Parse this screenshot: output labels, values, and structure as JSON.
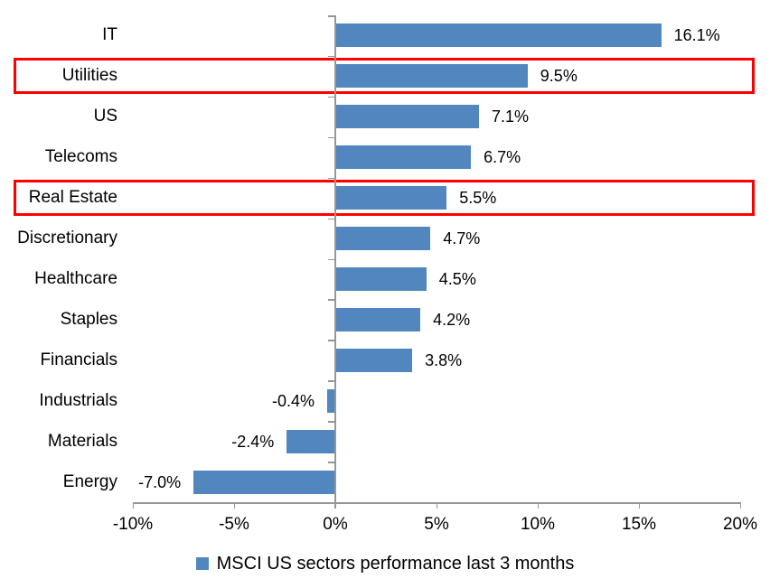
{
  "chart_data": {
    "type": "bar",
    "orientation": "horizontal",
    "title": "",
    "categories": [
      "IT",
      "Utilities",
      "US",
      "Telecoms",
      "Real Estate",
      "Discretionary",
      "Healthcare",
      "Staples",
      "Financials",
      "Industrials",
      "Materials",
      "Energy"
    ],
    "values": [
      16.1,
      9.5,
      7.1,
      6.7,
      5.5,
      4.7,
      4.5,
      4.2,
      3.8,
      -0.4,
      -2.4,
      -7.0
    ],
    "value_labels": [
      "16.1%",
      "9.5%",
      "7.1%",
      "6.7%",
      "5.5%",
      "4.7%",
      "4.5%",
      "4.2%",
      "3.8%",
      "-0.4%",
      "-2.4%",
      "-7.0%"
    ],
    "highlighted_categories": [
      "Utilities",
      "Real Estate"
    ],
    "x_axis": {
      "min": -10,
      "max": 20,
      "ticks": [
        -10,
        -5,
        0,
        5,
        10,
        15,
        20
      ],
      "tick_labels": [
        "-10%",
        "-5%",
        "0%",
        "5%",
        "10%",
        "15%",
        "20%"
      ]
    },
    "legend": {
      "label": "MSCI US sectors performance last 3 months",
      "position": "bottom"
    },
    "colors": {
      "bar": "#5187BE",
      "highlight_box": "#FF0000",
      "axis": "#969696",
      "text": "#000000",
      "background": "#FFFFFF"
    },
    "grid": false
  }
}
